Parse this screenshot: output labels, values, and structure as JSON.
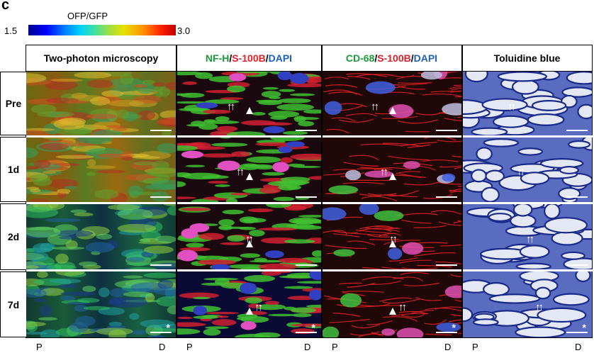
{
  "panel_letter": "c",
  "colorscale": {
    "title": "OFP/GFP",
    "min": "1.5",
    "max": "3.0"
  },
  "columns": [
    {
      "parts": [
        {
          "text": "Two-photon microscopy",
          "color": "k"
        }
      ]
    },
    {
      "parts": [
        {
          "text": "NF-H",
          "color": "g"
        },
        {
          "text": " / ",
          "color": "k"
        },
        {
          "text": "S-100B",
          "color": "r"
        },
        {
          "text": " / ",
          "color": "k"
        },
        {
          "text": "DAPI",
          "color": "b"
        }
      ]
    },
    {
      "parts": [
        {
          "text": "CD-68",
          "color": "g"
        },
        {
          "text": " / ",
          "color": "k"
        },
        {
          "text": "S-100B",
          "color": "r"
        },
        {
          "text": " / ",
          "color": "k"
        },
        {
          "text": "DAPI",
          "color": "b"
        }
      ]
    },
    {
      "parts": [
        {
          "text": "Toluidine blue",
          "color": "k"
        }
      ]
    }
  ],
  "rows": [
    "Pre",
    "1d",
    "2d",
    "7d"
  ],
  "axis_labels": {
    "proximal": "P",
    "distal": "D"
  },
  "arrow_glyph": "↑↑",
  "star_glyph": "*"
}
